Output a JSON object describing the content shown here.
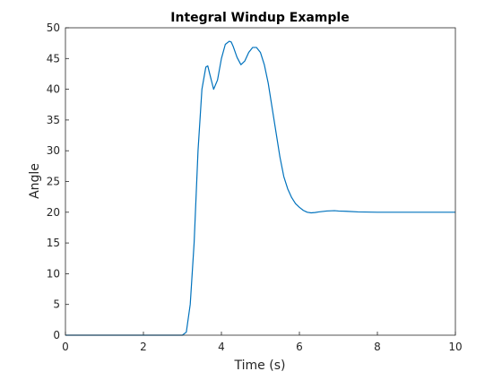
{
  "chart_data": {
    "type": "line",
    "title": "Integral Windup Example",
    "xlabel": "Time (s)",
    "ylabel": "Angle",
    "xlim": [
      0,
      10
    ],
    "ylim": [
      0,
      50
    ],
    "xticks": [
      0,
      2,
      4,
      6,
      8,
      10
    ],
    "yticks": [
      0,
      5,
      10,
      15,
      20,
      25,
      30,
      35,
      40,
      45,
      50
    ],
    "grid": false,
    "line_color": "#0072BD",
    "series": [
      {
        "x": [
          0,
          1,
          2,
          3.0,
          3.1,
          3.2,
          3.3,
          3.4,
          3.5,
          3.6,
          3.65,
          3.7,
          3.8,
          3.9,
          4.0,
          4.1,
          4.2,
          4.25,
          4.3,
          4.4,
          4.5,
          4.6,
          4.7,
          4.8,
          4.9,
          5.0,
          5.1,
          5.2,
          5.3,
          5.4,
          5.5,
          5.6,
          5.7,
          5.8,
          5.9,
          6.0,
          6.1,
          6.2,
          6.3,
          6.4,
          6.5,
          6.7,
          6.9,
          7.0,
          7.2,
          7.5,
          8.0,
          9.0,
          10.0
        ],
        "y": [
          0,
          0,
          0,
          0,
          0.5,
          5.0,
          15.0,
          30.0,
          40.0,
          43.6,
          43.8,
          42.5,
          40.0,
          41.5,
          45.0,
          47.3,
          47.8,
          47.7,
          47.0,
          45.2,
          44.0,
          44.6,
          46.0,
          46.8,
          46.8,
          46.0,
          44.0,
          41.0,
          37.0,
          33.0,
          29.0,
          25.8,
          23.8,
          22.4,
          21.4,
          20.8,
          20.3,
          20.0,
          19.9,
          19.95,
          20.05,
          20.2,
          20.25,
          20.2,
          20.15,
          20.05,
          20.0,
          20.0,
          20.0
        ]
      }
    ]
  }
}
